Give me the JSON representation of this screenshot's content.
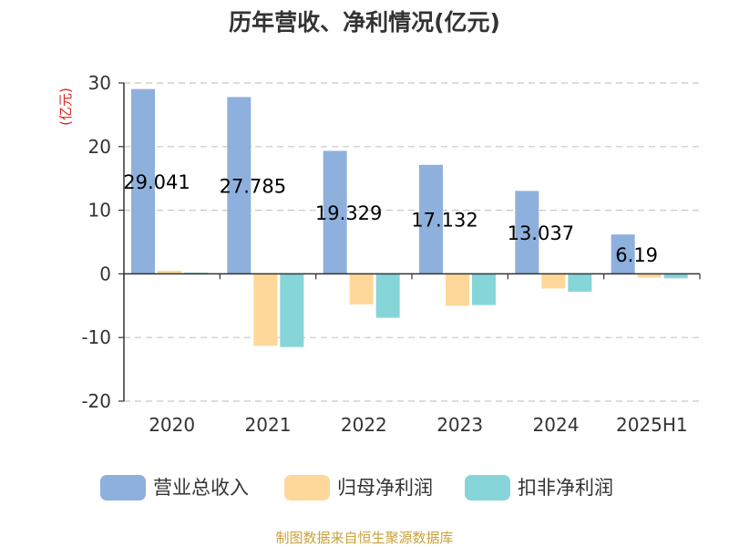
{
  "chart_data": {
    "type": "bar",
    "title": "历年营收、净利情况(亿元)",
    "unit_label": "(亿元)",
    "categories": [
      "2020",
      "2021",
      "2022",
      "2023",
      "2024",
      "2025H1"
    ],
    "series": [
      {
        "name": "营业总收入",
        "color": "#8eb0dc",
        "values": [
          29.041,
          27.785,
          19.329,
          17.132,
          13.037,
          6.19
        ]
      },
      {
        "name": "归母净利润",
        "color": "#fdd89a",
        "values": [
          0.5,
          -11.3,
          -4.8,
          -5.0,
          -2.3,
          -0.6
        ]
      },
      {
        "name": "扣非净利润",
        "color": "#86d5d8",
        "values": [
          0.2,
          -11.5,
          -6.9,
          -4.9,
          -2.8,
          -0.7
        ]
      }
    ],
    "data_labels": [
      "29.041",
      "27.785",
      "19.329",
      "17.132",
      "13.037",
      "6.19"
    ],
    "ylim": [
      -20,
      30
    ],
    "yticks": [
      30,
      20,
      10,
      0,
      -10,
      -20
    ],
    "grid": true,
    "legend_position": "bottom"
  },
  "source": "制图数据来自恒生聚源数据库"
}
